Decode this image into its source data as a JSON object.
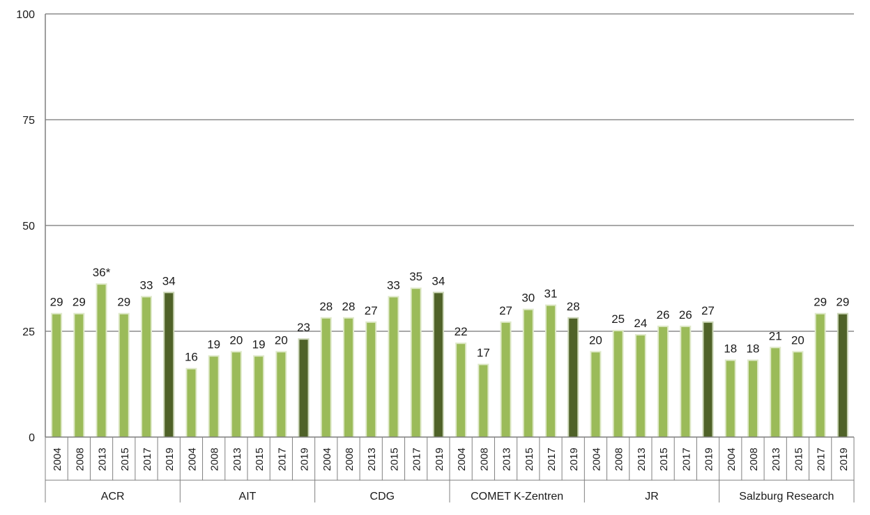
{
  "chart_data": {
    "type": "bar",
    "ylim": [
      0,
      100
    ],
    "yticks": [
      "0",
      "25",
      "50",
      "75",
      "100"
    ],
    "grid": true,
    "colors": {
      "bar": "#9bbb59",
      "latest": "#4f6228",
      "grid": "#8c8c8c",
      "axis": "#7f7f7f"
    },
    "groups": [
      {
        "name": "ACR",
        "years": [
          "2004",
          "2008",
          "2013",
          "2015",
          "2017",
          "2019"
        ],
        "values": [
          29,
          29,
          36,
          29,
          33,
          34
        ],
        "labels": [
          "29",
          "29",
          "36*",
          "29",
          "33",
          "34"
        ]
      },
      {
        "name": "AIT",
        "years": [
          "2004",
          "2008",
          "2013",
          "2015",
          "2017",
          "2019"
        ],
        "values": [
          16,
          19,
          20,
          19,
          20,
          23
        ],
        "labels": [
          "16",
          "19",
          "20",
          "19",
          "20",
          "23"
        ]
      },
      {
        "name": "CDG",
        "years": [
          "2004",
          "2008",
          "2013",
          "2015",
          "2017",
          "2019"
        ],
        "values": [
          28,
          28,
          27,
          33,
          35,
          34
        ],
        "labels": [
          "28",
          "28",
          "27",
          "33",
          "35",
          "34"
        ]
      },
      {
        "name": "COMET K-Zentren",
        "years": [
          "2004",
          "2008",
          "2013",
          "2015",
          "2017",
          "2019"
        ],
        "values": [
          22,
          17,
          27,
          30,
          31,
          28
        ],
        "labels": [
          "22",
          "17",
          "27",
          "30",
          "31",
          "28"
        ]
      },
      {
        "name": "JR",
        "years": [
          "2004",
          "2008",
          "2013",
          "2015",
          "2017",
          "2019"
        ],
        "values": [
          20,
          25,
          24,
          26,
          26,
          27
        ],
        "labels": [
          "20",
          "25",
          "24",
          "26",
          "26",
          "27"
        ]
      },
      {
        "name": "Salzburg Research",
        "years": [
          "2004",
          "2008",
          "2013",
          "2015",
          "2017",
          "2019"
        ],
        "values": [
          18,
          18,
          21,
          20,
          29,
          29
        ],
        "labels": [
          "18",
          "18",
          "21",
          "20",
          "29",
          "29"
        ]
      }
    ]
  }
}
